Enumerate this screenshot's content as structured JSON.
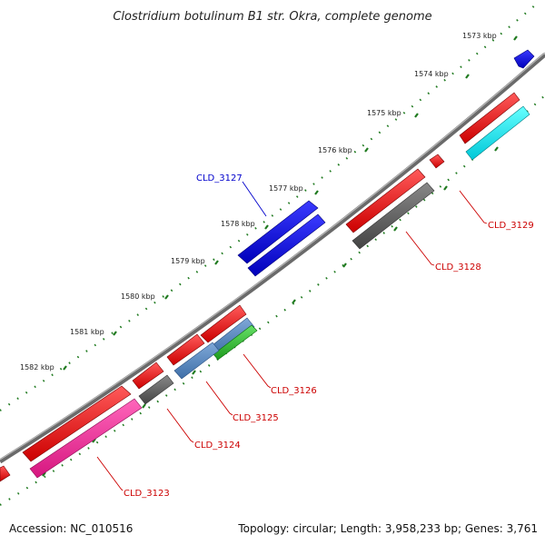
{
  "title": "Clostridium botulinum B1 str. Okra, complete genome",
  "footer": {
    "accession": "Accession: NC_010516",
    "summary": "Topology: circular; Length: 3,958,233 bp; Genes: 3,761"
  },
  "colors": {
    "backbone": "#888888",
    "ticks": "#1f7a1f",
    "label_red": "#cc0000",
    "label_blue": "#0000cc"
  },
  "ticks": [
    "1573 kbp",
    "1574 kbp",
    "1575 kbp",
    "1576 kbp",
    "1577 kbp",
    "1578 kbp",
    "1579 kbp",
    "1580 kbp",
    "1581 kbp",
    "1582 kbp"
  ],
  "genes": [
    {
      "label": "CLD_3123",
      "color": "#cc0000"
    },
    {
      "label": "CLD_3124",
      "color": "#cc0000"
    },
    {
      "label": "CLD_3125",
      "color": "#cc0000"
    },
    {
      "label": "CLD_3126",
      "color": "#cc0000"
    },
    {
      "label": "CLD_3127",
      "color": "#0000cc"
    },
    {
      "label": "CLD_3128",
      "color": "#cc0000"
    },
    {
      "label": "CLD_3129",
      "color": "#cc0000"
    }
  ]
}
